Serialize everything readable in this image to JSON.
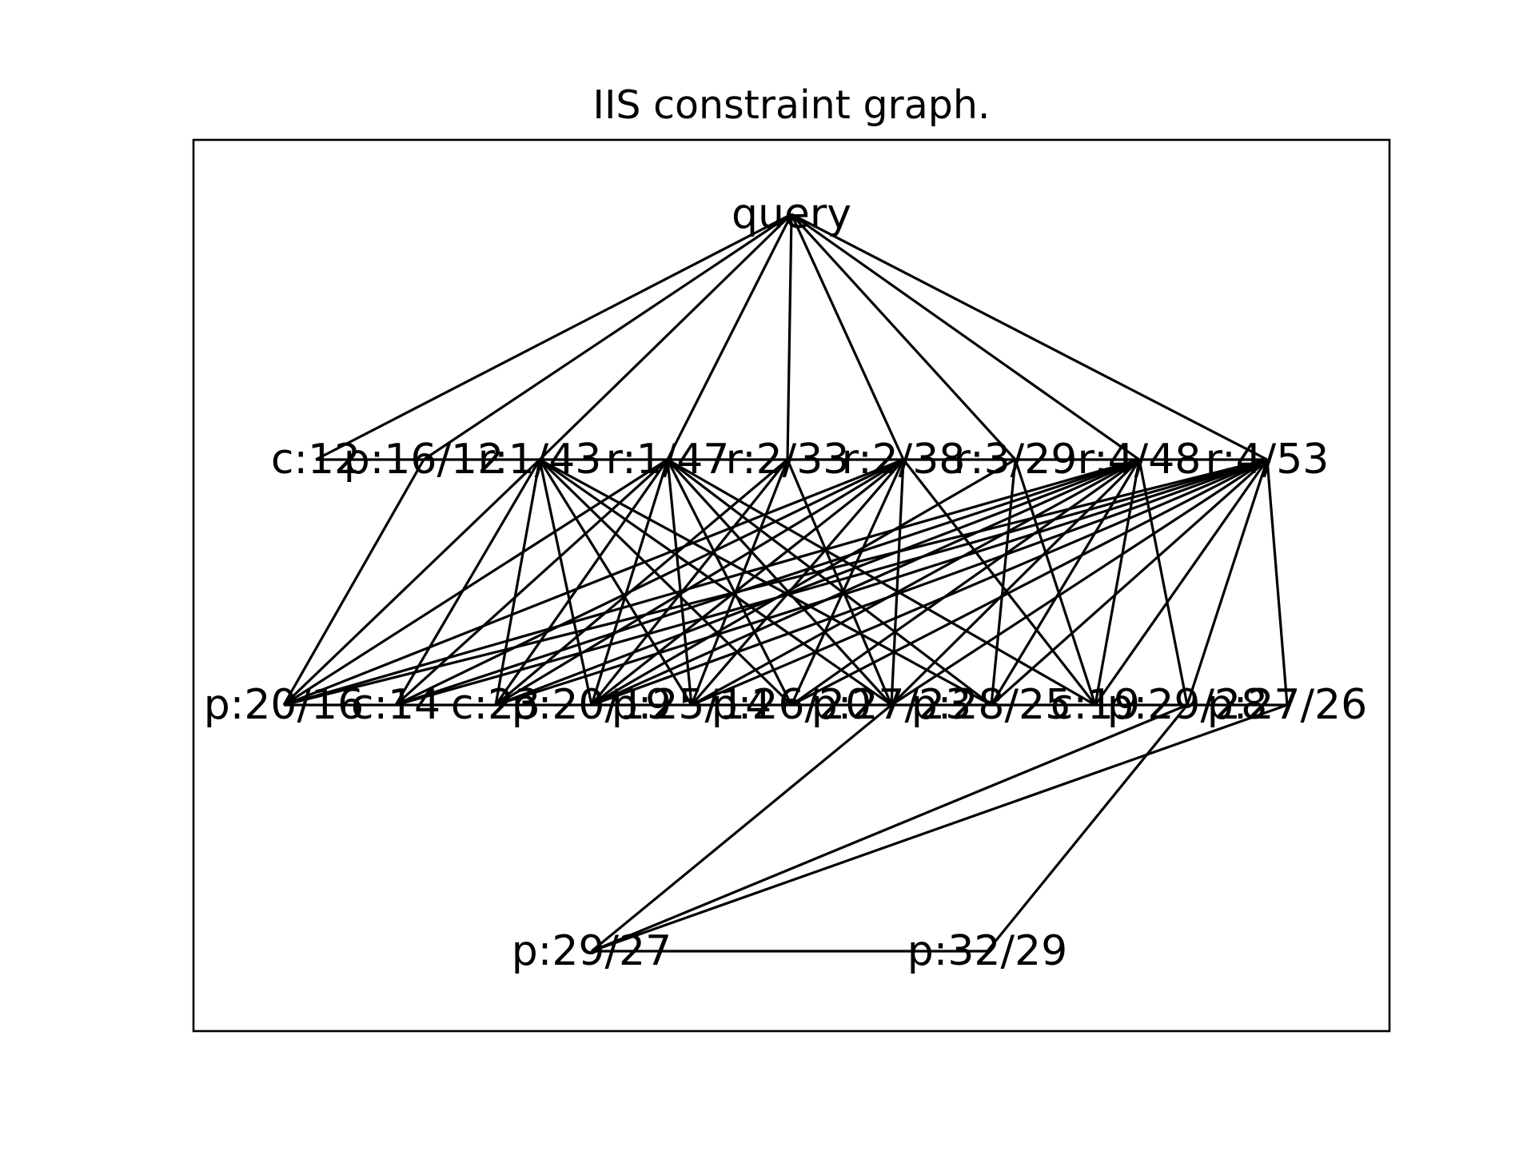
{
  "title": "IIS constraint graph.",
  "nodes": [
    {
      "id": "query",
      "label": "query"
    },
    {
      "id": "c12",
      "label": "c:12"
    },
    {
      "id": "p16_12",
      "label": "p:16/12"
    },
    {
      "id": "r1_43",
      "label": "r:1/43"
    },
    {
      "id": "r1_47",
      "label": "r:1/47"
    },
    {
      "id": "r2_33",
      "label": "r:2/33"
    },
    {
      "id": "r2_38",
      "label": "r:2/38"
    },
    {
      "id": "r3_29",
      "label": "r:3/29"
    },
    {
      "id": "r4_48",
      "label": "r:4/48"
    },
    {
      "id": "r4_53",
      "label": "r:4/53"
    },
    {
      "id": "p20_16",
      "label": "p:20/16"
    },
    {
      "id": "c14",
      "label": "c:14"
    },
    {
      "id": "c23",
      "label": "c:23"
    },
    {
      "id": "p20_19",
      "label": "p:20/19"
    },
    {
      "id": "p25_14",
      "label": "p:25/14"
    },
    {
      "id": "p26_20",
      "label": "p:26/20"
    },
    {
      "id": "p27_23",
      "label": "p:27/23"
    },
    {
      "id": "p28_25",
      "label": "p:28/25"
    },
    {
      "id": "c19",
      "label": "c:19"
    },
    {
      "id": "p29_28",
      "label": "p:29/28"
    },
    {
      "id": "p27_26",
      "label": "p:27/26"
    },
    {
      "id": "p29_27",
      "label": "p:29/27"
    },
    {
      "id": "p32_29",
      "label": "p:32/29"
    }
  ],
  "edges": [
    [
      "query",
      "c12"
    ],
    [
      "query",
      "p16_12"
    ],
    [
      "query",
      "r1_43"
    ],
    [
      "query",
      "r1_47"
    ],
    [
      "query",
      "r2_33"
    ],
    [
      "query",
      "r2_38"
    ],
    [
      "query",
      "r3_29"
    ],
    [
      "query",
      "r4_48"
    ],
    [
      "query",
      "r4_53"
    ],
    [
      "c12",
      "p16_12"
    ],
    [
      "p16_12",
      "r1_43"
    ],
    [
      "r1_43",
      "r1_47"
    ],
    [
      "r1_47",
      "r2_33"
    ],
    [
      "r2_33",
      "r2_38"
    ],
    [
      "r2_38",
      "r3_29"
    ],
    [
      "r3_29",
      "r4_48"
    ],
    [
      "r4_48",
      "r4_53"
    ],
    [
      "p16_12",
      "p20_16"
    ],
    [
      "r1_43",
      "p20_16"
    ],
    [
      "r1_43",
      "c14"
    ],
    [
      "r1_43",
      "c23"
    ],
    [
      "r1_43",
      "p20_19"
    ],
    [
      "r1_43",
      "p25_14"
    ],
    [
      "r1_43",
      "p26_20"
    ],
    [
      "r1_43",
      "p27_23"
    ],
    [
      "r1_43",
      "p28_25"
    ],
    [
      "r1_47",
      "p20_16"
    ],
    [
      "r1_47",
      "c14"
    ],
    [
      "r1_47",
      "c23"
    ],
    [
      "r1_47",
      "p20_19"
    ],
    [
      "r1_47",
      "p25_14"
    ],
    [
      "r1_47",
      "p26_20"
    ],
    [
      "r1_47",
      "p27_23"
    ],
    [
      "r1_47",
      "p28_25"
    ],
    [
      "r1_47",
      "c19"
    ],
    [
      "r2_33",
      "c23"
    ],
    [
      "r2_33",
      "p20_19"
    ],
    [
      "r2_33",
      "p25_14"
    ],
    [
      "r2_33",
      "p27_23"
    ],
    [
      "r2_38",
      "p20_16"
    ],
    [
      "r2_38",
      "c14"
    ],
    [
      "r2_38",
      "c23"
    ],
    [
      "r2_38",
      "p20_19"
    ],
    [
      "r2_38",
      "p25_14"
    ],
    [
      "r2_38",
      "p26_20"
    ],
    [
      "r2_38",
      "p27_23"
    ],
    [
      "r2_38",
      "c19"
    ],
    [
      "r3_29",
      "p20_19"
    ],
    [
      "r3_29",
      "p28_25"
    ],
    [
      "r3_29",
      "c19"
    ],
    [
      "r4_48",
      "p20_16"
    ],
    [
      "r4_48",
      "c14"
    ],
    [
      "r4_48",
      "c23"
    ],
    [
      "r4_48",
      "p20_19"
    ],
    [
      "r4_48",
      "p25_14"
    ],
    [
      "r4_48",
      "p26_20"
    ],
    [
      "r4_48",
      "p27_23"
    ],
    [
      "r4_48",
      "p28_25"
    ],
    [
      "r4_48",
      "c19"
    ],
    [
      "r4_48",
      "p29_28"
    ],
    [
      "r4_53",
      "p20_16"
    ],
    [
      "r4_53",
      "c14"
    ],
    [
      "r4_53",
      "c23"
    ],
    [
      "r4_53",
      "p20_19"
    ],
    [
      "r4_53",
      "p25_14"
    ],
    [
      "r4_53",
      "p26_20"
    ],
    [
      "r4_53",
      "p27_23"
    ],
    [
      "r4_53",
      "p28_25"
    ],
    [
      "r4_53",
      "c19"
    ],
    [
      "r4_53",
      "p29_28"
    ],
    [
      "r4_53",
      "p27_26"
    ],
    [
      "p20_16",
      "c14"
    ],
    [
      "c14",
      "c23"
    ],
    [
      "c23",
      "p20_19"
    ],
    [
      "p20_19",
      "p25_14"
    ],
    [
      "p25_14",
      "p26_20"
    ],
    [
      "p26_20",
      "p27_23"
    ],
    [
      "p27_23",
      "p28_25"
    ],
    [
      "p28_25",
      "c19"
    ],
    [
      "c19",
      "p29_28"
    ],
    [
      "p29_28",
      "p27_26"
    ],
    [
      "p27_23",
      "p29_27"
    ],
    [
      "p29_28",
      "p29_27"
    ],
    [
      "p27_26",
      "p29_27"
    ],
    [
      "p29_28",
      "p32_29"
    ],
    [
      "p29_27",
      "p32_29"
    ]
  ]
}
